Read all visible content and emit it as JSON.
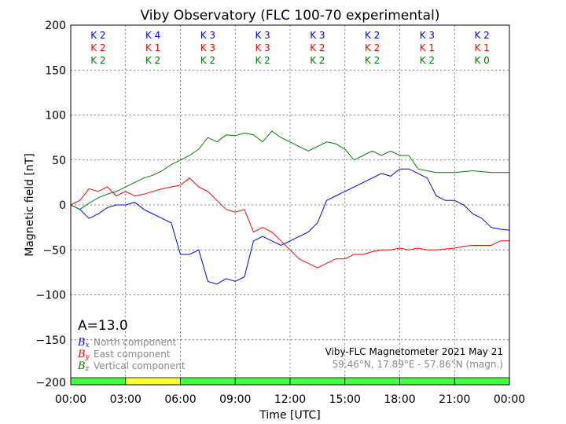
{
  "chart_data": {
    "type": "line",
    "title": "Viby Observatory (FLC 100-70 experimental)",
    "xlabel": "Time [UTC]",
    "ylabel": "Magnetic field [nT]",
    "xlim": [
      0,
      24
    ],
    "ylim": [
      -200,
      200
    ],
    "grid": true,
    "x_tick_labels": [
      "00:00",
      "03:00",
      "06:00",
      "09:00",
      "12:00",
      "15:00",
      "18:00",
      "21:00",
      "00:00"
    ],
    "y_ticks": [
      200,
      150,
      100,
      50,
      0,
      -50,
      -100,
      -150,
      -200
    ],
    "y_tick_labels": [
      "200",
      "150",
      "100",
      "50",
      "0",
      "−50",
      "−100",
      "−150",
      "−200"
    ],
    "x": [
      0,
      0.5,
      1,
      1.5,
      2,
      2.5,
      3,
      3.5,
      4,
      4.5,
      5,
      5.5,
      6,
      6.5,
      7,
      7.5,
      8,
      8.5,
      9,
      9.5,
      10,
      10.5,
      11,
      11.5,
      12,
      12.5,
      13,
      13.5,
      14,
      14.5,
      15,
      15.5,
      16,
      16.5,
      17,
      17.5,
      18,
      18.5,
      19,
      19.5,
      20,
      20.5,
      21,
      21.5,
      22,
      22.5,
      23,
      23.5,
      24
    ],
    "series": [
      {
        "name": "North component",
        "symbol": "B",
        "sub": "x",
        "color": "#0000ff",
        "values": [
          0,
          -5,
          -15,
          -10,
          -3,
          0,
          0,
          3,
          -5,
          -10,
          -15,
          -20,
          -55,
          -55,
          -50,
          -85,
          -88,
          -82,
          -85,
          -80,
          -40,
          -35,
          -40,
          -45,
          -40,
          -35,
          -30,
          -20,
          5,
          10,
          15,
          20,
          25,
          30,
          35,
          32,
          40,
          40,
          35,
          30,
          10,
          5,
          5,
          0,
          -10,
          -15,
          -25,
          -27,
          -28
        ]
      },
      {
        "name": "East component",
        "symbol": "B",
        "sub": "y",
        "color": "#ff0000",
        "values": [
          0,
          5,
          18,
          15,
          20,
          10,
          15,
          10,
          12,
          15,
          18,
          20,
          22,
          30,
          20,
          15,
          5,
          -5,
          -8,
          -5,
          -30,
          -25,
          -30,
          -40,
          -50,
          -60,
          -65,
          -70,
          -65,
          -60,
          -60,
          -55,
          -55,
          -52,
          -50,
          -50,
          -48,
          -50,
          -48,
          -50,
          -50,
          -49,
          -48,
          -46,
          -45,
          -45,
          -45,
          -40,
          -40
        ]
      },
      {
        "name": "Vertical component",
        "symbol": "B",
        "sub": "z",
        "color": "#008000",
        "values": [
          0,
          -5,
          2,
          8,
          12,
          15,
          20,
          25,
          30,
          33,
          38,
          45,
          50,
          55,
          62,
          75,
          70,
          78,
          77,
          80,
          78,
          70,
          82,
          75,
          70,
          65,
          60,
          65,
          70,
          68,
          62,
          50,
          55,
          60,
          55,
          60,
          55,
          55,
          40,
          38,
          36,
          36,
          36,
          37,
          38,
          37,
          36,
          36,
          36
        ]
      }
    ],
    "k_indices": {
      "x": [
        "K 2",
        "K 4",
        "K 3",
        "K 3",
        "K 3",
        "K 2",
        "K 3",
        "K 2"
      ],
      "y": [
        "K 2",
        "K 1",
        "K 3",
        "K 3",
        "K 2",
        "K 2",
        "K 1",
        "K 1"
      ],
      "z": [
        "K 2",
        "K 2",
        "K 2",
        "K 2",
        "K 2",
        "K 2",
        "K 2",
        "K 0"
      ]
    },
    "activity_bar_colors": [
      "#44ff44",
      "#ffff33",
      "#44ff44",
      "#44ff44",
      "#44ff44",
      "#44ff44",
      "#44ff44",
      "#44ff44"
    ],
    "a_index": "A=13.0",
    "station_label": "Viby-FLC Magnetometer 2021 May 21",
    "coords_label": "59.46°N, 17.89°E - 57.86°N (magn.)"
  }
}
